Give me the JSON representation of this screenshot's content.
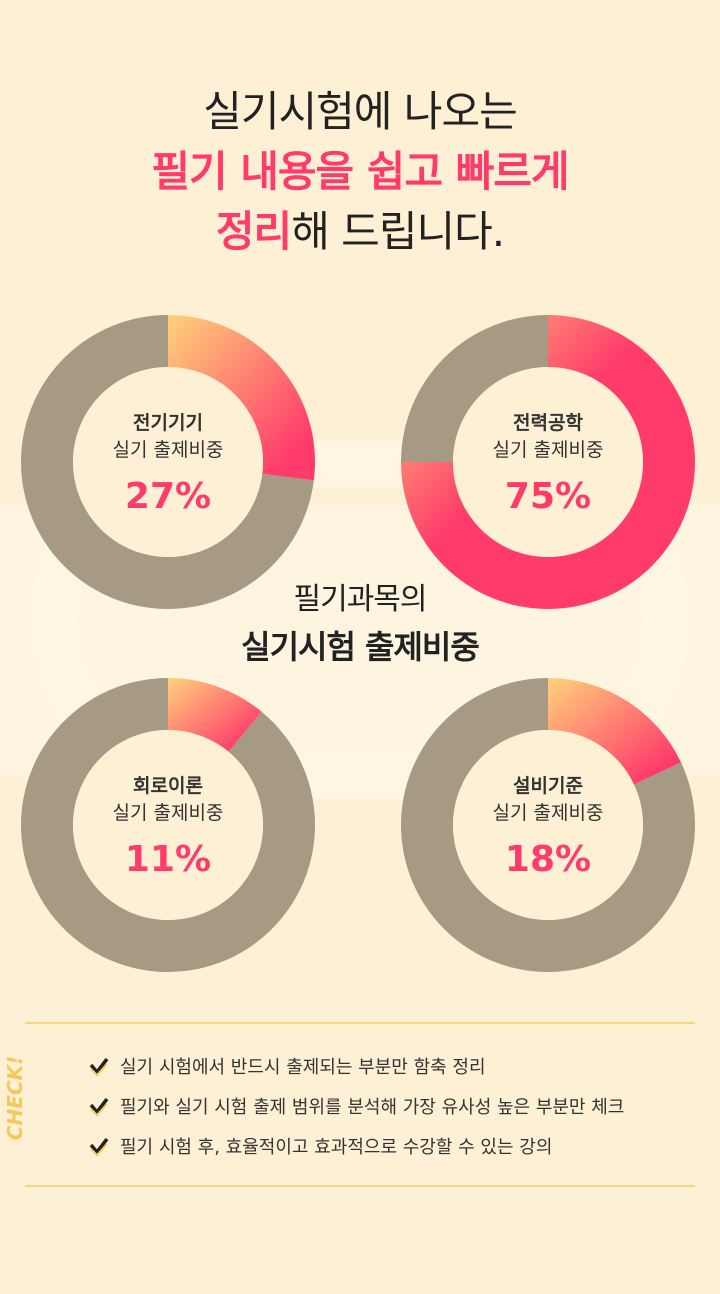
{
  "headline": {
    "line1": "실기시험에 나오는",
    "line2": "필기 내용을 쉽고 빠르게",
    "line3_accent": "정리",
    "line3_rest": "해 드립니다."
  },
  "center_title": {
    "line1": "필기과목의",
    "line2": "실기시험 출제비중"
  },
  "colors": {
    "background": "#fdf0d4",
    "remainder": "#a69a84",
    "accent_start": "#ffd27a",
    "accent_end": "#ff3b6b",
    "text_accent": "#ff3b6b",
    "check": "#f6c85a"
  },
  "chart_data": [
    {
      "type": "pie",
      "subject": "전기기기",
      "description": "실기 출제비중",
      "value_label": "27%",
      "values": [
        27,
        73
      ]
    },
    {
      "type": "pie",
      "subject": "전력공학",
      "description": "실기 출제비중",
      "value_label": "75%",
      "values": [
        75,
        25
      ]
    },
    {
      "type": "pie",
      "subject": "회로이론",
      "description": "실기 출제비중",
      "value_label": "11%",
      "values": [
        11,
        89
      ]
    },
    {
      "type": "pie",
      "subject": "설비기준",
      "description": "실기 출제비중",
      "value_label": "18%",
      "values": [
        18,
        82
      ]
    }
  ],
  "check": {
    "tag": "CHECK!",
    "items": [
      "실기 시험에서 반드시 출제되는 부분만 함축 정리",
      "필기와 실기 시험 출제 범위를 분석해 가장 유사성 높은 부분만 체크",
      "필기 시험 후, 효율적이고 효과적으로 수강할 수 있는 강의"
    ]
  }
}
